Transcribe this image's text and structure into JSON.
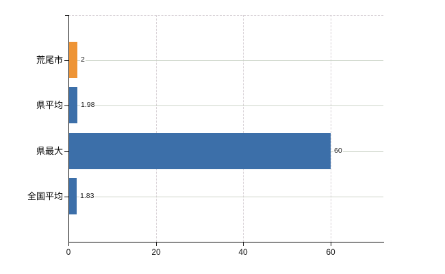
{
  "chart_data": {
    "type": "bar",
    "orientation": "horizontal",
    "title": "",
    "xlabel": "",
    "ylabel": "",
    "categories": [
      "荒尾市",
      "県平均",
      "県最大",
      "全国平均"
    ],
    "values": [
      2,
      1.98,
      60,
      1.83
    ],
    "value_labels": [
      "2",
      "1.98",
      "60",
      "1.83"
    ],
    "series": [
      {
        "name": "",
        "values": [
          2,
          1.98,
          60,
          1.83
        ]
      }
    ],
    "bar_colors": [
      "#ee9435",
      "#3c6fa9",
      "#3c6fa9",
      "#3c6fa9"
    ],
    "x_ticks": [
      0,
      20,
      40,
      60
    ],
    "x_tick_labels": [
      "0",
      "20",
      "40",
      "60"
    ],
    "xlim": [
      0,
      72
    ],
    "grid": "vertical-dashed-at-ticks, horizontal-solid-at-category-centers",
    "legend": "none",
    "colors": {
      "highlight_bar": "#ee9435",
      "default_bar": "#3c6fa9",
      "axis": "#111111",
      "v_gridline": "#d5ced3",
      "h_gridline": "#ccd4c8",
      "value_label_text": "#1a1a1a",
      "category_label_text": "#000000",
      "background": "#ffffff"
    }
  }
}
